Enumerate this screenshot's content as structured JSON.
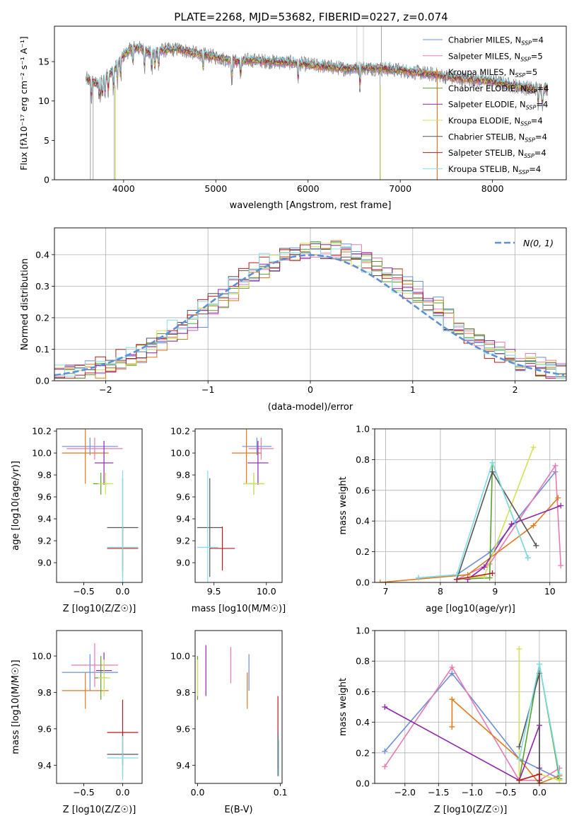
{
  "figure_title": "PLATE=2268, MJD=53682, FIBERID=0227, z=0.074",
  "colors": {
    "chabrier_miles": "#6a8fd8",
    "salpeter_miles": "#e879b4",
    "kroupa_miles": "#e07a1f",
    "chabrier_elodie": "#5aa02c",
    "salpeter_elodie": "#8e24aa",
    "kroupa_elodie": "#d4e157",
    "chabrier_stelib": "#555555",
    "salpeter_stelib": "#b71c1c",
    "kroupa_stelib": "#80deea",
    "data_spectrum": "#808080",
    "normal_curve": "#5b8fd6"
  },
  "chart_data": [
    {
      "type": "line",
      "name": "spectrum",
      "xlabel": "wavelength [Angstrom, rest frame]",
      "ylabel": "Flux [fλ10⁻¹⁷ erg cm⁻² s⁻¹ A⁻¹]",
      "xlim": [
        3250,
        8800
      ],
      "ylim": [
        0,
        19.5
      ],
      "xticks": [
        4000,
        5000,
        6000,
        7000,
        8000
      ],
      "yticks": [
        0,
        5,
        10,
        15
      ],
      "legend": "top-right",
      "series": [
        {
          "name": "Chabrier MILES, N_SSP=4",
          "label_main": "Chabrier MILES, N",
          "label_sub": "SSP",
          "label_tail": "=4",
          "color_key": "chabrier_miles"
        },
        {
          "name": "Salpeter MILES, N_SSP=5",
          "label_main": "Salpeter MILES, N",
          "label_sub": "SSP",
          "label_tail": "=5",
          "color_key": "salpeter_miles"
        },
        {
          "name": "Kroupa MILES, N_SSP=5",
          "label_main": "Kroupa MILES, N",
          "label_sub": "SSP",
          "label_tail": "=5",
          "color_key": "kroupa_miles"
        },
        {
          "name": "Chabrier ELODIE, N_SSP=4",
          "label_main": "Chabrier ELODIE, N",
          "label_sub": "SSP",
          "label_tail": "=4",
          "color_key": "chabrier_elodie"
        },
        {
          "name": "Salpeter ELODIE, N_SSP=4",
          "label_main": "Salpeter ELODIE, N",
          "label_sub": "SSP",
          "label_tail": "=4",
          "color_key": "salpeter_elodie"
        },
        {
          "name": "Kroupa ELODIE, N_SSP=4",
          "label_main": "Kroupa ELODIE, N",
          "label_sub": "SSP",
          "label_tail": "=4",
          "color_key": "kroupa_elodie"
        },
        {
          "name": "Chabrier STELIB, N_SSP=4",
          "label_main": "Chabrier STELIB, N",
          "label_sub": "SSP",
          "label_tail": "=4",
          "color_key": "chabrier_stelib"
        },
        {
          "name": "Salpeter STELIB, N_SSP=4",
          "label_main": "Salpeter STELIB, N",
          "label_sub": "SSP",
          "label_tail": "=4",
          "color_key": "salpeter_stelib"
        },
        {
          "name": "Kroupa STELIB, N_SSP=4",
          "label_main": "Kroupa STELIB, N",
          "label_sub": "SSP",
          "label_tail": "=4",
          "color_key": "kroupa_stelib"
        }
      ],
      "continuum_points": [
        [
          3600,
          12.8
        ],
        [
          3700,
          12.2
        ],
        [
          3800,
          13.0
        ],
        [
          3900,
          14.0
        ],
        [
          4000,
          15.8
        ],
        [
          4100,
          16.8
        ],
        [
          4200,
          16.6
        ],
        [
          4300,
          16.0
        ],
        [
          4400,
          16.4
        ],
        [
          4600,
          16.6
        ],
        [
          4800,
          16.0
        ],
        [
          5000,
          15.6
        ],
        [
          5200,
          15.0
        ],
        [
          5400,
          15.2
        ],
        [
          5600,
          15.0
        ],
        [
          5800,
          14.9
        ],
        [
          6000,
          14.6
        ],
        [
          6200,
          14.4
        ],
        [
          6400,
          14.1
        ],
        [
          6600,
          14.2
        ],
        [
          6800,
          14.1
        ],
        [
          7000,
          13.9
        ],
        [
          7200,
          13.6
        ],
        [
          7400,
          13.3
        ],
        [
          7600,
          12.9
        ],
        [
          7800,
          12.7
        ],
        [
          8000,
          12.5
        ],
        [
          8200,
          12.0
        ],
        [
          8400,
          11.6
        ]
      ]
    },
    {
      "type": "histogram",
      "name": "residuals",
      "xlabel": "(data-model)/error",
      "ylabel": "Normed distribution",
      "xlim": [
        -2.5,
        2.5
      ],
      "ylim": [
        0,
        0.485
      ],
      "xticks": [
        -2,
        -1,
        0,
        1,
        2
      ],
      "yticks": [
        0.0,
        0.1,
        0.2,
        0.3,
        0.4
      ],
      "grid": true,
      "legend": "top-right",
      "reference_label": "N(0, 1)",
      "reference_curve": {
        "mean": 0,
        "sigma": 1,
        "style": "dashed"
      },
      "bin_width": 0.1
    },
    {
      "type": "errorbar",
      "name": "age-vs-Z",
      "xlabel": "Z [log10(Z/Z☉)]",
      "ylabel": "age [log10(age/yr)]",
      "xlim": [
        -0.85,
        0.25
      ],
      "ylim": [
        8.82,
        10.22
      ],
      "xticks": [
        -0.5,
        0.0
      ],
      "yticks": [
        9.0,
        9.2,
        9.4,
        9.6,
        9.8,
        10.0,
        10.2
      ],
      "points": [
        {
          "c": "chabrier_miles",
          "x": -0.42,
          "xe": 0.36,
          "y": 10.06,
          "ye": 0.08
        },
        {
          "c": "salpeter_miles",
          "x": -0.36,
          "xe": 0.36,
          "y": 10.04,
          "ye": 0.1
        },
        {
          "c": "kroupa_miles",
          "x": -0.48,
          "xe": 0.3,
          "y": 10.0,
          "ye": 0.28
        },
        {
          "c": "chabrier_elodie",
          "x": -0.28,
          "xe": 0.1,
          "y": 9.72,
          "ye": 0.1
        },
        {
          "c": "salpeter_elodie",
          "x": -0.24,
          "xe": 0.12,
          "y": 9.91,
          "ye": 0.2
        },
        {
          "c": "kroupa_elodie",
          "x": -0.22,
          "xe": 0.1,
          "y": 9.72,
          "ye": 0.1
        },
        {
          "c": "chabrier_stelib",
          "x": 0.0,
          "xe": 0.2,
          "y": 9.32,
          "ye": 0.45
        },
        {
          "c": "salpeter_stelib",
          "x": 0.0,
          "xe": 0.2,
          "y": 9.13,
          "ye": 0.2
        },
        {
          "c": "kroupa_stelib",
          "x": 0.0,
          "xe": 0.2,
          "y": 9.14,
          "ye": 0.7
        }
      ]
    },
    {
      "type": "errorbar",
      "name": "age-vs-mass",
      "xlabel": "mass [log10(M/M☉)]",
      "ylabel": "",
      "xlim": [
        9.32,
        10.15
      ],
      "ylim": [
        8.82,
        10.22
      ],
      "xticks": [
        9.5,
        10.0
      ],
      "yticks": [
        9.0,
        9.2,
        9.4,
        9.6,
        9.8,
        10.0,
        10.2
      ],
      "points": [
        {
          "c": "chabrier_miles",
          "x": 9.91,
          "xe": 0.14,
          "y": 10.06,
          "ye": 0.08
        },
        {
          "c": "salpeter_miles",
          "x": 9.95,
          "xe": 0.12,
          "y": 10.04,
          "ye": 0.1
        },
        {
          "c": "kroupa_miles",
          "x": 9.81,
          "xe": 0.14,
          "y": 10.0,
          "ye": 0.28
        },
        {
          "c": "chabrier_elodie",
          "x": 9.88,
          "xe": 0.1,
          "y": 9.72,
          "ye": 0.1
        },
        {
          "c": "salpeter_elodie",
          "x": 9.92,
          "xe": 0.1,
          "y": 9.91,
          "ye": 0.2
        },
        {
          "c": "kroupa_elodie",
          "x": 9.88,
          "xe": 0.1,
          "y": 9.72,
          "ye": 0.1
        },
        {
          "c": "chabrier_stelib",
          "x": 9.46,
          "xe": 0.12,
          "y": 9.32,
          "ye": 0.45
        },
        {
          "c": "salpeter_stelib",
          "x": 9.58,
          "xe": 0.12,
          "y": 9.13,
          "ye": 0.2
        },
        {
          "c": "kroupa_stelib",
          "x": 9.44,
          "xe": 0.1,
          "y": 9.14,
          "ye": 0.7
        }
      ]
    },
    {
      "type": "line",
      "name": "mass-weight-vs-age",
      "xlabel": "age [log10(age/yr)]",
      "ylabel": "mass weight",
      "xlim": [
        6.8,
        10.3
      ],
      "ylim": [
        0,
        1.0
      ],
      "xticks": [
        7,
        8,
        9,
        10
      ],
      "yticks": [
        0.0,
        0.2,
        0.4,
        0.6,
        0.8,
        1.0
      ],
      "grid": true,
      "series": [
        {
          "c": "chabrier_miles",
          "x": [
            7.6,
            8.3,
            8.92,
            10.1
          ],
          "y": [
            0.03,
            0.05,
            0.2,
            0.72
          ]
        },
        {
          "c": "salpeter_miles",
          "x": [
            8.3,
            8.9,
            10.1,
            10.2
          ],
          "y": [
            0.02,
            0.12,
            0.76,
            0.11
          ]
        },
        {
          "c": "kroupa_miles",
          "x": [
            6.9,
            8.5,
            9.7,
            10.15
          ],
          "y": [
            0.0,
            0.05,
            0.37,
            0.55
          ]
        },
        {
          "c": "chabrier_elodie",
          "x": [
            8.3,
            8.9,
            8.95,
            9.6
          ],
          "y": [
            0.02,
            0.03,
            0.78,
            0.16
          ]
        },
        {
          "c": "salpeter_elodie",
          "x": [
            8.5,
            8.8,
            9.3,
            10.2
          ],
          "y": [
            0.02,
            0.1,
            0.38,
            0.5
          ]
        },
        {
          "c": "kroupa_elodie",
          "x": [
            8.3,
            8.8,
            9.7
          ],
          "y": [
            0.02,
            0.04,
            0.88
          ]
        },
        {
          "c": "chabrier_stelib",
          "x": [
            8.3,
            8.95,
            9.75
          ],
          "y": [
            0.02,
            0.72,
            0.24
          ]
        },
        {
          "c": "salpeter_stelib",
          "x": [
            8.3,
            8.95
          ],
          "y": [
            0.02,
            0.06
          ]
        },
        {
          "c": "kroupa_stelib",
          "x": [
            7.6,
            8.3,
            8.95,
            9.6
          ],
          "y": [
            0.03,
            0.05,
            0.78,
            0.16
          ]
        }
      ]
    },
    {
      "type": "errorbar",
      "name": "mass-vs-Z",
      "xlabel": "Z [log10(Z/Z☉)]",
      "ylabel": "mass [log10(M/M☉)]",
      "xlim": [
        -0.85,
        0.25
      ],
      "ylim": [
        9.3,
        10.14
      ],
      "xticks": [
        -0.5,
        0.0
      ],
      "yticks": [
        9.4,
        9.6,
        9.8,
        10.0
      ],
      "points": [
        {
          "c": "chabrier_miles",
          "x": -0.42,
          "xe": 0.36,
          "y": 9.91,
          "ye": 0.1
        },
        {
          "c": "salpeter_miles",
          "x": -0.36,
          "xe": 0.3,
          "y": 9.95,
          "ye": 0.12
        },
        {
          "c": "kroupa_miles",
          "x": -0.48,
          "xe": 0.3,
          "y": 9.81,
          "ye": 0.1
        },
        {
          "c": "chabrier_elodie",
          "x": -0.28,
          "xe": 0.08,
          "y": 9.88,
          "ye": 0.12
        },
        {
          "c": "salpeter_elodie",
          "x": -0.24,
          "xe": 0.1,
          "y": 9.92,
          "ye": 0.1
        },
        {
          "c": "kroupa_elodie",
          "x": -0.24,
          "xe": 0.08,
          "y": 9.88,
          "ye": 0.1
        },
        {
          "c": "chabrier_stelib",
          "x": 0.0,
          "xe": 0.2,
          "y": 9.46,
          "ye": 0.12
        },
        {
          "c": "salpeter_stelib",
          "x": 0.0,
          "xe": 0.2,
          "y": 9.58,
          "ye": 0.18
        },
        {
          "c": "kroupa_stelib",
          "x": 0.0,
          "xe": 0.2,
          "y": 9.44,
          "ye": 0.12
        }
      ]
    },
    {
      "type": "errorbar",
      "name": "mass-vs-EBV",
      "xlabel": "E(B-V)",
      "ylabel": "",
      "xlim": [
        -0.003,
        0.102
      ],
      "ylim": [
        9.3,
        10.14
      ],
      "xticks": [
        0.0,
        0.1
      ],
      "yticks": [
        9.4,
        9.6,
        9.8,
        10.0
      ],
      "points": [
        {
          "c": "chabrier_elodie",
          "x": 0.0,
          "xe": 0,
          "y": 9.88,
          "ye": 0.12
        },
        {
          "c": "kroupa_elodie",
          "x": 0.0,
          "xe": 0,
          "y": 9.88,
          "ye": 0.1
        },
        {
          "c": "salpeter_elodie",
          "x": 0.01,
          "xe": 0,
          "y": 9.92,
          "ye": 0.14
        },
        {
          "c": "salpeter_miles",
          "x": 0.04,
          "xe": 0,
          "y": 9.95,
          "ye": 0.1
        },
        {
          "c": "kroupa_miles",
          "x": 0.06,
          "xe": 0,
          "y": 9.81,
          "ye": 0.1
        },
        {
          "c": "chabrier_miles",
          "x": 0.062,
          "xe": 0,
          "y": 9.91,
          "ye": 0.1
        },
        {
          "c": "salpeter_stelib",
          "x": 0.097,
          "xe": 0,
          "y": 9.58,
          "ye": 0.2
        },
        {
          "c": "chabrier_stelib",
          "x": 0.097,
          "xe": 0,
          "y": 9.46,
          "ye": 0.12
        },
        {
          "c": "kroupa_stelib",
          "x": 0.098,
          "xe": 0,
          "y": 9.44,
          "ye": 0.1
        }
      ]
    },
    {
      "type": "line",
      "name": "mass-weight-vs-Z",
      "xlabel": "Z [log10(Z/Z☉)]",
      "ylabel": "mass weight",
      "xlim": [
        -2.45,
        0.4
      ],
      "ylim": [
        0,
        1.0
      ],
      "xticks": [
        -2.0,
        -1.5,
        -1.0,
        -0.5,
        0.0
      ],
      "yticks": [
        0.0,
        0.2,
        0.4,
        0.6,
        0.8,
        1.0
      ],
      "grid": true,
      "series": [
        {
          "c": "chabrier_miles",
          "x": [
            -2.3,
            -1.3,
            -0.3,
            0.3
          ],
          "y": [
            0.21,
            0.72,
            0.16,
            0.03
          ]
        },
        {
          "c": "salpeter_miles",
          "x": [
            -2.3,
            -1.3,
            -0.3,
            0.0,
            0.3
          ],
          "y": [
            0.11,
            0.76,
            0.02,
            0.02,
            0.1
          ]
        },
        {
          "c": "kroupa_miles",
          "x": [
            -1.3,
            -1.3,
            -0.3,
            0.0,
            0.3
          ],
          "y": [
            0.37,
            0.55,
            0.16,
            0.0,
            0.05
          ]
        },
        {
          "c": "chabrier_elodie",
          "x": [
            -0.3,
            0.0,
            0.3
          ],
          "y": [
            0.02,
            0.78,
            0.03
          ]
        },
        {
          "c": "salpeter_elodie",
          "x": [
            -2.3,
            -0.3,
            0.0,
            0.0
          ],
          "y": [
            0.5,
            0.02,
            0.38,
            0.1
          ]
        },
        {
          "c": "kroupa_elodie",
          "x": [
            -0.3,
            -0.3,
            0.0,
            0.3
          ],
          "y": [
            0.88,
            0.02,
            0.06,
            0.02
          ]
        },
        {
          "c": "chabrier_stelib",
          "x": [
            -0.3,
            0.0,
            0.0
          ],
          "y": [
            0.24,
            0.72,
            0.02
          ]
        },
        {
          "c": "salpeter_stelib",
          "x": [
            -0.3,
            0.0,
            0.0
          ],
          "y": [
            0.02,
            0.06,
            0.0
          ]
        },
        {
          "c": "kroupa_stelib",
          "x": [
            -0.3,
            0.0,
            0.3
          ],
          "y": [
            0.16,
            0.78,
            0.06
          ]
        }
      ]
    }
  ]
}
